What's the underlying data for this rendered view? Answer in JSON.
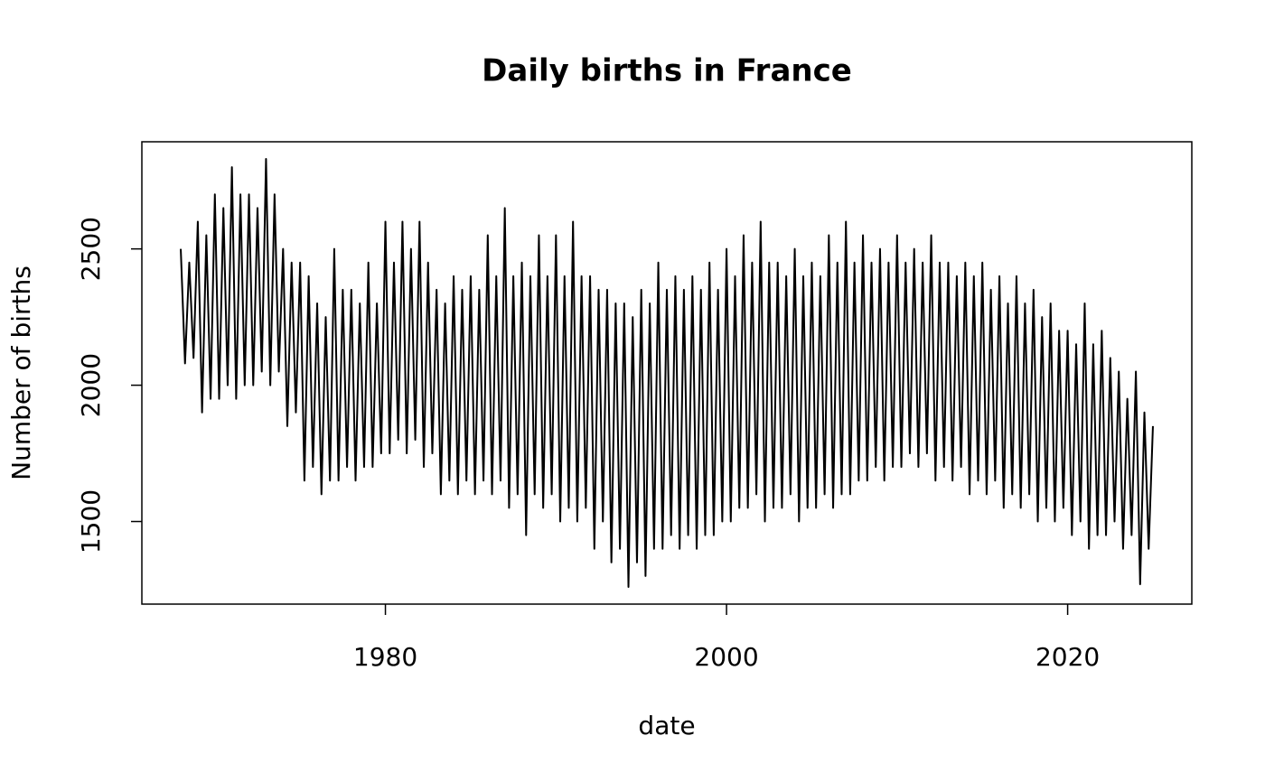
{
  "chart_data": {
    "type": "line",
    "title": "Daily births in France",
    "xlabel": "date",
    "ylabel": "Number of births",
    "color": "#000000",
    "xlim": [
      1965.72,
      2027.28
    ],
    "ylim": [
      1197,
      2893
    ],
    "xticks": [
      1980,
      2000,
      2020
    ],
    "yticks": [
      1500,
      2000,
      2500
    ],
    "x": [
      1968,
      1968.25,
      1968.5,
      1968.75,
      1969,
      1969.25,
      1969.5,
      1969.75,
      1970,
      1970.25,
      1970.5,
      1970.75,
      1971,
      1971.25,
      1971.5,
      1971.75,
      1972,
      1972.25,
      1972.5,
      1972.75,
      1973,
      1973.25,
      1973.5,
      1973.75,
      1974,
      1974.25,
      1974.5,
      1974.75,
      1975,
      1975.25,
      1975.5,
      1975.75,
      1976,
      1976.25,
      1976.5,
      1976.75,
      1977,
      1977.25,
      1977.5,
      1977.75,
      1978,
      1978.25,
      1978.5,
      1978.75,
      1979,
      1979.25,
      1979.5,
      1979.75,
      1980,
      1980.25,
      1980.5,
      1980.75,
      1981,
      1981.25,
      1981.5,
      1981.75,
      1982,
      1982.25,
      1982.5,
      1982.75,
      1983,
      1983.25,
      1983.5,
      1983.75,
      1984,
      1984.25,
      1984.5,
      1984.75,
      1985,
      1985.25,
      1985.5,
      1985.75,
      1986,
      1986.25,
      1986.5,
      1986.75,
      1987,
      1987.25,
      1987.5,
      1987.75,
      1988,
      1988.25,
      1988.5,
      1988.75,
      1989,
      1989.25,
      1989.5,
      1989.75,
      1990,
      1990.25,
      1990.5,
      1990.75,
      1991,
      1991.25,
      1991.5,
      1991.75,
      1992,
      1992.25,
      1992.5,
      1992.75,
      1993,
      1993.25,
      1993.5,
      1993.75,
      1994,
      1994.25,
      1994.5,
      1994.75,
      1995,
      1995.25,
      1995.5,
      1995.75,
      1996,
      1996.25,
      1996.5,
      1996.75,
      1997,
      1997.25,
      1997.5,
      1997.75,
      1998,
      1998.25,
      1998.5,
      1998.75,
      1999,
      1999.25,
      1999.5,
      1999.75,
      2000,
      2000.25,
      2000.5,
      2000.75,
      2001,
      2001.25,
      2001.5,
      2001.75,
      2002,
      2002.25,
      2002.5,
      2002.75,
      2003,
      2003.25,
      2003.5,
      2003.75,
      2004,
      2004.25,
      2004.5,
      2004.75,
      2005,
      2005.25,
      2005.5,
      2005.75,
      2006,
      2006.25,
      2006.5,
      2006.75,
      2007,
      2007.25,
      2007.5,
      2007.75,
      2008,
      2008.25,
      2008.5,
      2008.75,
      2009,
      2009.25,
      2009.5,
      2009.75,
      2010,
      2010.25,
      2010.5,
      2010.75,
      2011,
      2011.25,
      2011.5,
      2011.75,
      2012,
      2012.25,
      2012.5,
      2012.75,
      2013,
      2013.25,
      2013.5,
      2013.75,
      2014,
      2014.25,
      2014.5,
      2014.75,
      2015,
      2015.25,
      2015.5,
      2015.75,
      2016,
      2016.25,
      2016.5,
      2016.75,
      2017,
      2017.25,
      2017.5,
      2017.75,
      2018,
      2018.25,
      2018.5,
      2018.75,
      2019,
      2019.25,
      2019.5,
      2019.75,
      2020,
      2020.25,
      2020.5,
      2020.75,
      2021,
      2021.25,
      2021.5,
      2021.75,
      2022,
      2022.25,
      2022.5,
      2022.75,
      2023,
      2023.25,
      2023.5,
      2023.75,
      2024,
      2024.25,
      2024.5,
      2024.75,
      2025
    ],
    "values": [
      2500,
      2080,
      2450,
      2100,
      2600,
      1900,
      2550,
      1950,
      2700,
      1950,
      2650,
      2000,
      2800,
      1950,
      2700,
      2000,
      2700,
      2000,
      2650,
      2050,
      2830,
      2000,
      2700,
      2050,
      2500,
      1850,
      2450,
      1900,
      2450,
      1650,
      2400,
      1700,
      2300,
      1600,
      2250,
      1650,
      2500,
      1650,
      2350,
      1700,
      2350,
      1650,
      2300,
      1700,
      2450,
      1700,
      2300,
      1750,
      2600,
      1750,
      2450,
      1800,
      2600,
      1750,
      2500,
      1800,
      2600,
      1700,
      2450,
      1750,
      2350,
      1600,
      2300,
      1650,
      2400,
      1600,
      2350,
      1650,
      2400,
      1600,
      2350,
      1650,
      2550,
      1600,
      2400,
      1650,
      2650,
      1550,
      2400,
      1600,
      2450,
      1450,
      2400,
      1600,
      2550,
      1550,
      2400,
      1600,
      2550,
      1500,
      2400,
      1550,
      2600,
      1500,
      2400,
      1550,
      2400,
      1400,
      2350,
      1500,
      2350,
      1350,
      2300,
      1400,
      2300,
      1260,
      2250,
      1350,
      2350,
      1300,
      2300,
      1400,
      2450,
      1400,
      2350,
      1450,
      2400,
      1400,
      2350,
      1450,
      2400,
      1400,
      2350,
      1450,
      2450,
      1450,
      2350,
      1500,
      2500,
      1500,
      2400,
      1550,
      2550,
      1550,
      2450,
      1600,
      2600,
      1500,
      2450,
      1550,
      2450,
      1550,
      2400,
      1600,
      2500,
      1500,
      2400,
      1550,
      2450,
      1550,
      2400,
      1600,
      2550,
      1550,
      2450,
      1600,
      2600,
      1600,
      2450,
      1650,
      2550,
      1650,
      2450,
      1700,
      2500,
      1650,
      2450,
      1700,
      2550,
      1700,
      2450,
      1750,
      2500,
      1700,
      2450,
      1750,
      2550,
      1650,
      2450,
      1700,
      2450,
      1650,
      2400,
      1700,
      2450,
      1600,
      2400,
      1650,
      2450,
      1600,
      2350,
      1650,
      2400,
      1550,
      2300,
      1600,
      2400,
      1550,
      2300,
      1600,
      2350,
      1500,
      2250,
      1550,
      2300,
      1500,
      2200,
      1550,
      2200,
      1450,
      2150,
      1500,
      2300,
      1400,
      2150,
      1450,
      2200,
      1450,
      2100,
      1500,
      2050,
      1400,
      1950,
      1450,
      2050,
      1270,
      1900,
      1400,
      1850
    ]
  }
}
